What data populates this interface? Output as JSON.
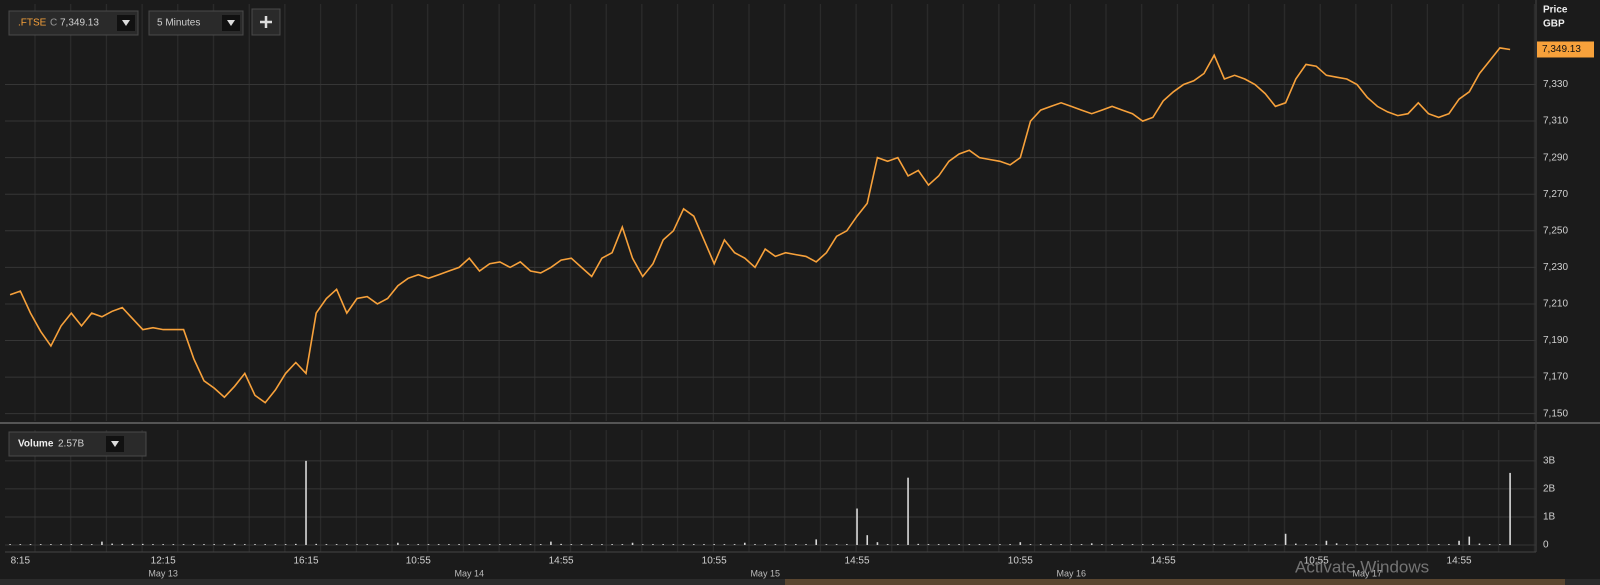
{
  "header": {
    "symbol": ".FTSE",
    "close_prefix": "C",
    "interval": "5 Minutes",
    "watermark": "Activate Windows"
  },
  "chart_data": [
    {
      "type": "line",
      "color": "#f7a13b",
      "y_axis_title": "Price",
      "y_axis_unit": "GBP",
      "last": {
        "value": 7349.13,
        "label": "7,349.13"
      },
      "ylim": [
        7146,
        7374
      ],
      "yticks": [
        {
          "value": 7150,
          "label": "7,150"
        },
        {
          "value": 7170,
          "label": "7,170"
        },
        {
          "value": 7190,
          "label": "7,190"
        },
        {
          "value": 7210,
          "label": "7,210"
        },
        {
          "value": 7230,
          "label": "7,230"
        },
        {
          "value": 7250,
          "label": "7,250"
        },
        {
          "value": 7270,
          "label": "7,270"
        },
        {
          "value": 7290,
          "label": "7,290"
        },
        {
          "value": 7310,
          "label": "7,310"
        },
        {
          "value": 7330,
          "label": "7,330"
        }
      ],
      "grid": true,
      "categories": [
        null,
        "8:15",
        null,
        null,
        null,
        null,
        null,
        null,
        null,
        null,
        null,
        null,
        null,
        null,
        null,
        "12:15",
        null,
        null,
        null,
        null,
        null,
        null,
        null,
        null,
        null,
        null,
        null,
        null,
        null,
        "16:15",
        null,
        null,
        null,
        null,
        null,
        null,
        null,
        null,
        null,
        null,
        "10:55",
        null,
        null,
        null,
        null,
        null,
        null,
        null,
        null,
        null,
        null,
        null,
        null,
        null,
        "14:55",
        null,
        null,
        null,
        null,
        null,
        null,
        null,
        null,
        null,
        null,
        null,
        null,
        null,
        null,
        "10:55",
        null,
        null,
        null,
        null,
        null,
        null,
        null,
        null,
        null,
        null,
        null,
        null,
        null,
        "14:55",
        null,
        null,
        null,
        null,
        null,
        null,
        null,
        null,
        null,
        null,
        null,
        null,
        null,
        null,
        null,
        "10:55",
        null,
        null,
        null,
        null,
        null,
        null,
        null,
        null,
        null,
        null,
        null,
        null,
        null,
        "14:55",
        null,
        null,
        null,
        null,
        null,
        null,
        null,
        null,
        null,
        null,
        null,
        null,
        null,
        null,
        "10:55",
        null,
        null,
        null,
        null,
        null,
        null,
        null,
        null,
        null,
        null,
        null,
        null,
        null,
        "14:55",
        null,
        null,
        null,
        null,
        null
      ],
      "date_labels": [
        null,
        null,
        null,
        null,
        null,
        null,
        null,
        null,
        null,
        null,
        null,
        null,
        null,
        null,
        null,
        "May 13",
        null,
        null,
        null,
        null,
        null,
        null,
        null,
        null,
        null,
        null,
        null,
        null,
        null,
        null,
        null,
        null,
        null,
        null,
        null,
        null,
        null,
        null,
        null,
        null,
        null,
        null,
        null,
        null,
        null,
        "May 14",
        null,
        null,
        null,
        null,
        null,
        null,
        null,
        null,
        null,
        null,
        null,
        null,
        null,
        null,
        null,
        null,
        null,
        null,
        null,
        null,
        null,
        null,
        null,
        null,
        null,
        null,
        null,
        null,
        "May 15",
        null,
        null,
        null,
        null,
        null,
        null,
        null,
        null,
        null,
        null,
        null,
        null,
        null,
        null,
        null,
        null,
        null,
        null,
        null,
        null,
        null,
        null,
        null,
        null,
        null,
        null,
        null,
        null,
        null,
        "May 16",
        null,
        null,
        null,
        null,
        null,
        null,
        null,
        null,
        null,
        null,
        null,
        null,
        null,
        null,
        null,
        null,
        null,
        null,
        null,
        null,
        null,
        null,
        null,
        null,
        null,
        null,
        null,
        null,
        "May 17",
        null,
        null,
        null,
        null,
        null,
        null,
        null,
        null,
        null,
        null,
        null,
        null,
        null,
        null
      ],
      "values": [
        7215,
        7217,
        7205,
        7195,
        7187,
        7198,
        7205,
        7198,
        7205,
        7203,
        7206,
        7208,
        7202,
        7196,
        7197,
        7196,
        7196,
        7196,
        7180,
        7168,
        7164,
        7159,
        7165,
        7172,
        7160,
        7156,
        7163,
        7172,
        7178,
        7172,
        7205,
        7213,
        7218,
        7205,
        7213,
        7214,
        7210,
        7213,
        7220,
        7224,
        7226,
        7224,
        7226,
        7228,
        7230,
        7235,
        7228,
        7232,
        7233,
        7230,
        7233,
        7228,
        7227,
        7230,
        7234,
        7235,
        7230,
        7225,
        7235,
        7238,
        7252,
        7235,
        7225,
        7232,
        7245,
        7250,
        7262,
        7258,
        7245,
        7232,
        7245,
        7238,
        7235,
        7230,
        7240,
        7236,
        7238,
        7237,
        7236,
        7233,
        7238,
        7247,
        7250,
        7258,
        7265,
        7290,
        7288,
        7290,
        7280,
        7283,
        7275,
        7280,
        7288,
        7292,
        7294,
        7290,
        7289,
        7288,
        7286,
        7290,
        7310,
        7316,
        7318,
        7320,
        7318,
        7316,
        7314,
        7316,
        7318,
        7316,
        7314,
        7310,
        7312,
        7321,
        7326,
        7330,
        7332,
        7336,
        7346,
        7333,
        7335,
        7333,
        7330,
        7325,
        7318,
        7320,
        7333,
        7341,
        7340,
        7335,
        7334,
        7333,
        7330,
        7323,
        7318,
        7315,
        7313,
        7314,
        7320,
        7314,
        7312,
        7314,
        7322,
        7326,
        7336,
        7343,
        7350,
        7349.13
      ]
    },
    {
      "type": "bar",
      "title": "Volume",
      "color": "#d9d9d9",
      "last": {
        "value": 2.57,
        "label": "2.57B"
      },
      "ylim": [
        -0.25,
        4.1
      ],
      "yticks": [
        0,
        {
          "value": 1,
          "label": "1B"
        },
        {
          "value": 2,
          "label": "2B"
        },
        {
          "value": 3,
          "label": "3B"
        }
      ],
      "grid": true,
      "values": [
        0.03,
        0.03,
        0.03,
        0.03,
        0.03,
        0.03,
        0.03,
        0.03,
        0.03,
        0.12,
        0.05,
        0.04,
        0.04,
        0.04,
        0.03,
        0.03,
        0.03,
        0.03,
        0.03,
        0.03,
        0.03,
        0.03,
        0.04,
        0.03,
        0.03,
        0.03,
        0.03,
        0.03,
        0.04,
        3.0,
        0.04,
        0.03,
        0.03,
        0.03,
        0.03,
        0.03,
        0.03,
        0.03,
        0.08,
        0.03,
        0.03,
        0.03,
        0.03,
        0.03,
        0.03,
        0.03,
        0.03,
        0.03,
        0.03,
        0.03,
        0.03,
        0.03,
        0.03,
        0.12,
        0.04,
        0.03,
        0.03,
        0.03,
        0.03,
        0.03,
        0.03,
        0.08,
        0.03,
        0.03,
        0.03,
        0.03,
        0.03,
        0.03,
        0.03,
        0.03,
        0.03,
        0.03,
        0.08,
        0.03,
        0.03,
        0.03,
        0.03,
        0.03,
        0.03,
        0.2,
        0.03,
        0.03,
        0.03,
        1.3,
        0.35,
        0.1,
        0.03,
        0.03,
        2.4,
        0.04,
        0.03,
        0.03,
        0.03,
        0.03,
        0.03,
        0.03,
        0.03,
        0.03,
        0.03,
        0.1,
        0.03,
        0.03,
        0.03,
        0.03,
        0.03,
        0.03,
        0.06,
        0.03,
        0.03,
        0.03,
        0.03,
        0.03,
        0.03,
        0.03,
        0.03,
        0.03,
        0.03,
        0.03,
        0.03,
        0.03,
        0.03,
        0.03,
        0.03,
        0.03,
        0.03,
        0.4,
        0.05,
        0.03,
        0.03,
        0.15,
        0.06,
        0.03,
        0.03,
        0.03,
        0.03,
        0.03,
        0.03,
        0.03,
        0.03,
        0.03,
        0.03,
        0.03,
        0.15,
        0.3,
        0.05,
        0.03,
        0.03,
        2.57
      ]
    }
  ]
}
